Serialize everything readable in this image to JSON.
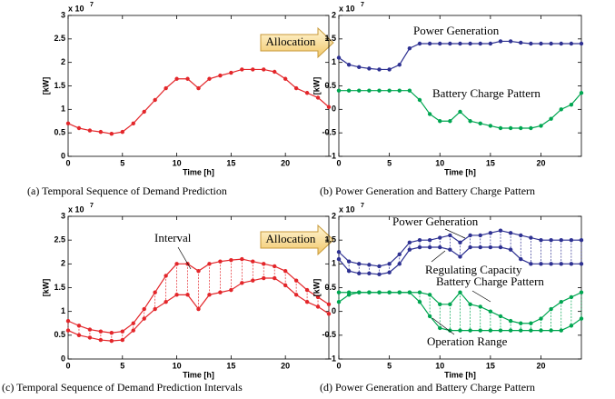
{
  "chart_data": [
    {
      "type": "line",
      "caption": "(a)  Temporal Sequence of Demand Prediction",
      "xlabel": "Time [h]",
      "ylabel": "[kW]",
      "y_multiplier": "x 10",
      "y_exponent": "7",
      "x": [
        0,
        1,
        2,
        3,
        4,
        5,
        6,
        7,
        8,
        9,
        10,
        11,
        12,
        13,
        14,
        15,
        16,
        17,
        18,
        19,
        20,
        21,
        22,
        23,
        24
      ],
      "xlim": [
        0,
        24
      ],
      "xticks": [
        0,
        5,
        10,
        15,
        20
      ],
      "ylim": [
        0,
        3
      ],
      "yticks": [
        0,
        0.5,
        1,
        1.5,
        2,
        2.5,
        3
      ],
      "series": [
        {
          "color": "#e3262a",
          "values": [
            0.7,
            0.6,
            0.55,
            0.52,
            0.48,
            0.52,
            0.7,
            0.95,
            1.2,
            1.45,
            1.65,
            1.65,
            1.45,
            1.65,
            1.72,
            1.78,
            1.85,
            1.85,
            1.85,
            1.8,
            1.65,
            1.45,
            1.35,
            1.25,
            1.05
          ]
        }
      ],
      "annotations": []
    },
    {
      "type": "line",
      "caption": "(b)  Power Generation and Battery Charge Pattern",
      "xlabel": "Time [h]",
      "ylabel": "[kW]",
      "y_multiplier": "x 10",
      "y_exponent": "7",
      "x": [
        0,
        1,
        2,
        3,
        4,
        5,
        6,
        7,
        8,
        9,
        10,
        11,
        12,
        13,
        14,
        15,
        16,
        17,
        18,
        19,
        20,
        21,
        22,
        23,
        24
      ],
      "xlim": [
        0,
        24
      ],
      "xticks": [
        0,
        5,
        10,
        15,
        20
      ],
      "ylim": [
        -1,
        2
      ],
      "yticks": [
        -1,
        -0.5,
        0,
        0.5,
        1,
        1.5,
        2
      ],
      "series": [
        {
          "color": "#2e3192",
          "values": [
            1.1,
            0.95,
            0.9,
            0.87,
            0.85,
            0.85,
            0.95,
            1.3,
            1.4,
            1.4,
            1.4,
            1.4,
            1.4,
            1.4,
            1.4,
            1.4,
            1.45,
            1.45,
            1.42,
            1.4,
            1.4,
            1.4,
            1.4,
            1.4,
            1.4
          ]
        },
        {
          "color": "#00a651",
          "values": [
            0.4,
            0.4,
            0.4,
            0.4,
            0.4,
            0.4,
            0.4,
            0.4,
            0.2,
            -0.1,
            -0.25,
            -0.25,
            -0.05,
            -0.25,
            -0.3,
            -0.35,
            -0.4,
            -0.4,
            -0.4,
            -0.4,
            -0.35,
            -0.2,
            0,
            0.1,
            0.35
          ]
        }
      ],
      "annotations": [
        "Power Generation",
        "Battery Charge Pattern"
      ]
    },
    {
      "type": "interval",
      "caption": "(c)  Temporal Sequence of Demand Prediction Intervals",
      "xlabel": "Time [h]",
      "ylabel": "[kW]",
      "y_multiplier": "x 10",
      "y_exponent": "7",
      "x": [
        0,
        1,
        2,
        3,
        4,
        5,
        6,
        7,
        8,
        9,
        10,
        11,
        12,
        13,
        14,
        15,
        16,
        17,
        18,
        19,
        20,
        21,
        22,
        23,
        24
      ],
      "xlim": [
        0,
        24
      ],
      "xticks": [
        0,
        5,
        10,
        15,
        20
      ],
      "ylim": [
        0,
        3
      ],
      "yticks": [
        0,
        0.5,
        1,
        1.5,
        2,
        2.5,
        3
      ],
      "series": [
        {
          "color": "#e3262a",
          "values": [
            0.8,
            0.7,
            0.62,
            0.58,
            0.55,
            0.58,
            0.75,
            1.05,
            1.4,
            1.75,
            2.0,
            2.0,
            1.85,
            2.0,
            2.05,
            2.08,
            2.1,
            2.05,
            2.0,
            1.95,
            1.85,
            1.65,
            1.45,
            1.3,
            1.15
          ]
        },
        {
          "color": "#e3262a",
          "values": [
            0.6,
            0.5,
            0.45,
            0.4,
            0.38,
            0.4,
            0.6,
            0.85,
            1.05,
            1.2,
            1.35,
            1.35,
            1.05,
            1.35,
            1.4,
            1.45,
            1.6,
            1.65,
            1.7,
            1.7,
            1.55,
            1.35,
            1.2,
            1.1,
            0.95
          ]
        }
      ],
      "annotations": [
        "Interval"
      ]
    },
    {
      "type": "interval",
      "caption": "(d)  Power Generation and Battery Charge Pattern",
      "xlabel": "Time [h]",
      "ylabel": "[kW]",
      "y_multiplier": "x 10",
      "y_exponent": "7",
      "x": [
        0,
        1,
        2,
        3,
        4,
        5,
        6,
        7,
        8,
        9,
        10,
        11,
        12,
        13,
        14,
        15,
        16,
        17,
        18,
        19,
        20,
        21,
        22,
        23,
        24
      ],
      "xlim": [
        0,
        24
      ],
      "xticks": [
        0,
        5,
        10,
        15,
        20
      ],
      "ylim": [
        -1,
        2
      ],
      "yticks": [
        -1,
        -0.5,
        0,
        0.5,
        1,
        1.5,
        2
      ],
      "series": [
        {
          "color": "#2e3192",
          "values": [
            1.25,
            1.05,
            1.0,
            0.98,
            0.95,
            1.0,
            1.2,
            1.45,
            1.5,
            1.5,
            1.55,
            1.6,
            1.45,
            1.6,
            1.6,
            1.65,
            1.7,
            1.65,
            1.6,
            1.55,
            1.5,
            1.5,
            1.5,
            1.5,
            1.5
          ]
        },
        {
          "color": "#2e3192",
          "values": [
            1.1,
            0.85,
            0.8,
            0.8,
            0.78,
            0.82,
            1.0,
            1.3,
            1.35,
            1.35,
            1.35,
            1.3,
            1.15,
            1.35,
            1.35,
            1.35,
            1.35,
            1.3,
            1.1,
            1.0,
            1.0,
            1.0,
            1.0,
            1.0,
            1.0
          ]
        },
        {
          "color": "#00a651",
          "values": [
            0.4,
            0.4,
            0.4,
            0.4,
            0.4,
            0.4,
            0.4,
            0.4,
            0.4,
            0.35,
            0.15,
            0.15,
            0.4,
            0.15,
            0.1,
            0,
            -0.1,
            -0.2,
            -0.25,
            -0.25,
            -0.15,
            0.05,
            0.2,
            0.3,
            0.4
          ]
        },
        {
          "color": "#00a651",
          "values": [
            0.2,
            0.35,
            0.4,
            0.4,
            0.4,
            0.4,
            0.4,
            0.4,
            0.2,
            -0.1,
            -0.35,
            -0.4,
            -0.4,
            -0.4,
            -0.4,
            -0.4,
            -0.4,
            -0.4,
            -0.4,
            -0.4,
            -0.4,
            -0.4,
            -0.4,
            -0.3,
            -0.15
          ]
        }
      ],
      "annotations": [
        "Power Generation",
        "Regulating Capacity",
        "Battery Charge Pattern",
        "Operation Range"
      ]
    }
  ],
  "arrows": [
    "Allocation",
    "Allocation"
  ]
}
